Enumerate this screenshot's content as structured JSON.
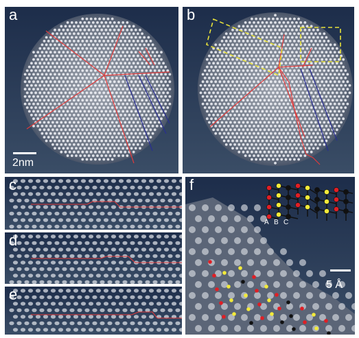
{
  "panels": {
    "a": {
      "label": "a",
      "scale_bar": "2nm"
    },
    "b": {
      "label": "b"
    },
    "c": {
      "label": "c"
    },
    "d": {
      "label": "d"
    },
    "e": {
      "label": "e"
    },
    "f": {
      "label": "f",
      "scale_bar": "5 Å",
      "inset_letters": [
        "A",
        "B",
        "C"
      ]
    }
  },
  "colors": {
    "boundary": "#e23a3a",
    "stacking_fault": "#2a2f8f",
    "highlight_box": "#e8e23a",
    "atom_a": "#e01f25",
    "atom_b": "#f2ea3a",
    "atom_c": "#111111"
  }
}
